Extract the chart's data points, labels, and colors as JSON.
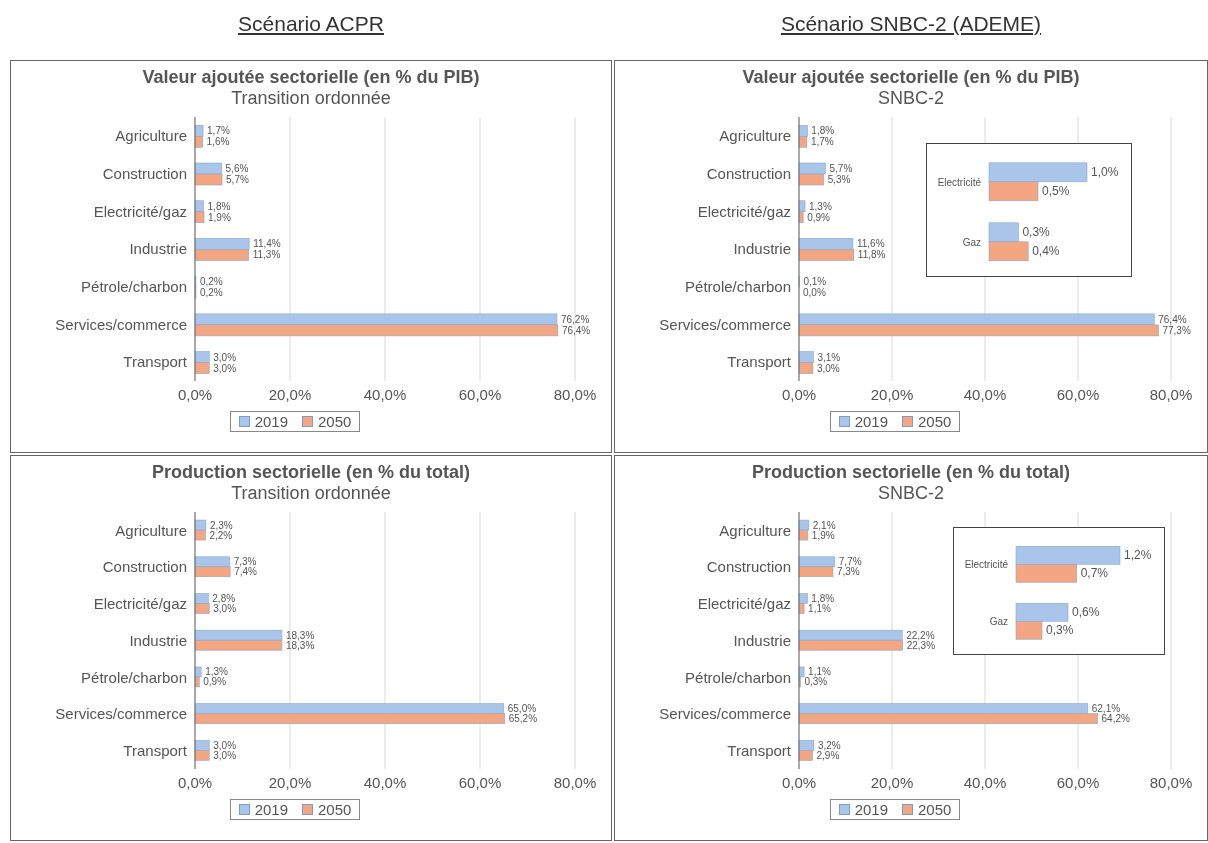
{
  "chart_data": [
    {
      "type": "bar",
      "orientation": "horizontal",
      "title": "Valeur ajoutée sectorielle (en % du PIB)",
      "subtitle": "Transition ordonnée",
      "annotations": [
        "Scénario ACPR"
      ],
      "categories": [
        "Agriculture",
        "Construction",
        "Electricité/gaz",
        "Industrie",
        "Pétrole/charbon",
        "Services/commerce",
        "Transport"
      ],
      "series": [
        {
          "name": "2019",
          "color": "#a9c6ea",
          "values": [
            1.7,
            5.6,
            1.8,
            11.4,
            0.2,
            76.2,
            3.0
          ],
          "value_labels": [
            "1,7%",
            "5,6%",
            "1,8%",
            "11,4%",
            "0,2%",
            "76,2%",
            "3,0%"
          ]
        },
        {
          "name": "2050",
          "color": "#f4a582",
          "values": [
            1.6,
            5.7,
            1.9,
            11.3,
            0.2,
            76.4,
            3.0
          ],
          "value_labels": [
            "1,6%",
            "5,7%",
            "1,9%",
            "11,3%",
            "0,2%",
            "76,4%",
            "3,0%"
          ]
        }
      ],
      "xlim": [
        0,
        80
      ],
      "xticks": [
        {
          "value": 0,
          "label": "0,0%"
        },
        {
          "value": 20,
          "label": "20,0%"
        },
        {
          "value": 40,
          "label": "40,0%"
        },
        {
          "value": 60,
          "label": "60,0%"
        },
        {
          "value": 80,
          "label": "80,0%"
        }
      ],
      "grid": "x",
      "legend": "bottom"
    },
    {
      "type": "bar",
      "orientation": "horizontal",
      "title": "Valeur ajoutée sectorielle (en % du PIB)",
      "subtitle": "SNBC-2",
      "annotations": [
        "Scénario SNBC-2 (ADEME)"
      ],
      "categories": [
        "Agriculture",
        "Construction",
        "Electricité/gaz",
        "Industrie",
        "Pétrole/charbon",
        "Services/commerce",
        "Transport"
      ],
      "series": [
        {
          "name": "2019",
          "color": "#a9c6ea",
          "values": [
            1.8,
            5.7,
            1.3,
            11.6,
            0.1,
            76.4,
            3.1
          ],
          "value_labels": [
            "1,8%",
            "5,7%",
            "1,3%",
            "11,6%",
            "0,1%",
            "76,4%",
            "3,1%"
          ]
        },
        {
          "name": "2050",
          "color": "#f4a582",
          "values": [
            1.7,
            5.3,
            0.9,
            11.8,
            0.0,
            77.3,
            3.0
          ],
          "value_labels": [
            "1,7%",
            "5,3%",
            "0,9%",
            "11,8%",
            "0,0%",
            "77,3%",
            "3,0%"
          ]
        }
      ],
      "xlim": [
        0,
        80
      ],
      "xticks": [
        {
          "value": 0,
          "label": "0,0%"
        },
        {
          "value": 20,
          "label": "20,0%"
        },
        {
          "value": 40,
          "label": "40,0%"
        },
        {
          "value": 60,
          "label": "60,0%"
        },
        {
          "value": 80,
          "label": "80,0%"
        }
      ],
      "grid": "x",
      "legend": "bottom"
    },
    {
      "type": "bar",
      "orientation": "horizontal",
      "categories": [
        "Electricité",
        "Gaz"
      ],
      "series": [
        {
          "color": "#a9c6ea",
          "values": [
            1.0,
            0.3
          ],
          "value_labels": [
            "1,0%",
            "0,3%"
          ]
        },
        {
          "color": "#f4a582",
          "values": [
            0.5,
            0.4
          ],
          "value_labels": [
            "0,5%",
            "0,4%"
          ]
        }
      ]
    },
    {
      "type": "bar",
      "orientation": "horizontal",
      "title": "Production sectorielle (en % du total)",
      "subtitle": "Transition ordonnée",
      "categories": [
        "Agriculture",
        "Construction",
        "Electricité/gaz",
        "Industrie",
        "Pétrole/charbon",
        "Services/commerce",
        "Transport"
      ],
      "series": [
        {
          "name": "2019",
          "color": "#a9c6ea",
          "values": [
            2.3,
            7.3,
            2.8,
            18.3,
            1.3,
            65.0,
            3.0
          ],
          "value_labels": [
            "2,3%",
            "7,3%",
            "2,8%",
            "18,3%",
            "1,3%",
            "65,0%",
            "3,0%"
          ]
        },
        {
          "name": "2050",
          "color": "#f4a582",
          "values": [
            2.2,
            7.4,
            3.0,
            18.3,
            0.9,
            65.2,
            3.0
          ],
          "value_labels": [
            "2,2%",
            "7,4%",
            "3,0%",
            "18,3%",
            "0,9%",
            "65,2%",
            "3,0%"
          ]
        }
      ],
      "xlim": [
        0,
        80
      ],
      "xticks": [
        {
          "value": 0,
          "label": "0,0%"
        },
        {
          "value": 20,
          "label": "20,0%"
        },
        {
          "value": 40,
          "label": "40,0%"
        },
        {
          "value": 60,
          "label": "60,0%"
        },
        {
          "value": 80,
          "label": "80,0%"
        }
      ],
      "grid": "x",
      "legend": "bottom"
    },
    {
      "type": "bar",
      "orientation": "horizontal",
      "title": "Production sectorielle (en % du total)",
      "subtitle": "SNBC-2",
      "categories": [
        "Agriculture",
        "Construction",
        "Electricité/gaz",
        "Industrie",
        "Pétrole/charbon",
        "Services/commerce",
        "Transport"
      ],
      "series": [
        {
          "name": "2019",
          "color": "#a9c6ea",
          "values": [
            2.1,
            7.7,
            1.8,
            22.2,
            1.1,
            62.1,
            3.2
          ],
          "value_labels": [
            "2,1%",
            "7,7%",
            "1,8%",
            "22,2%",
            "1,1%",
            "62,1%",
            "3,2%"
          ]
        },
        {
          "name": "2050",
          "color": "#f4a582",
          "values": [
            1.9,
            7.3,
            1.1,
            22.3,
            0.3,
            64.2,
            2.9
          ],
          "value_labels": [
            "1,9%",
            "7,3%",
            "1,1%",
            "22,3%",
            "0,3%",
            "64,2%",
            "2,9%"
          ]
        }
      ],
      "xlim": [
        0,
        80
      ],
      "xticks": [
        {
          "value": 0,
          "label": "0,0%"
        },
        {
          "value": 20,
          "label": "20,0%"
        },
        {
          "value": 40,
          "label": "40,0%"
        },
        {
          "value": 60,
          "label": "60,0%"
        },
        {
          "value": 80,
          "label": "80,0%"
        }
      ],
      "grid": "x",
      "legend": "bottom"
    },
    {
      "type": "bar",
      "orientation": "horizontal",
      "categories": [
        "Electricité",
        "Gaz"
      ],
      "series": [
        {
          "color": "#a9c6ea",
          "values": [
            1.2,
            0.6
          ],
          "value_labels": [
            "1,2%",
            "0,6%"
          ]
        },
        {
          "color": "#f4a582",
          "values": [
            0.7,
            0.3
          ],
          "value_labels": [
            "0,7%",
            "0,3%"
          ]
        }
      ]
    }
  ]
}
